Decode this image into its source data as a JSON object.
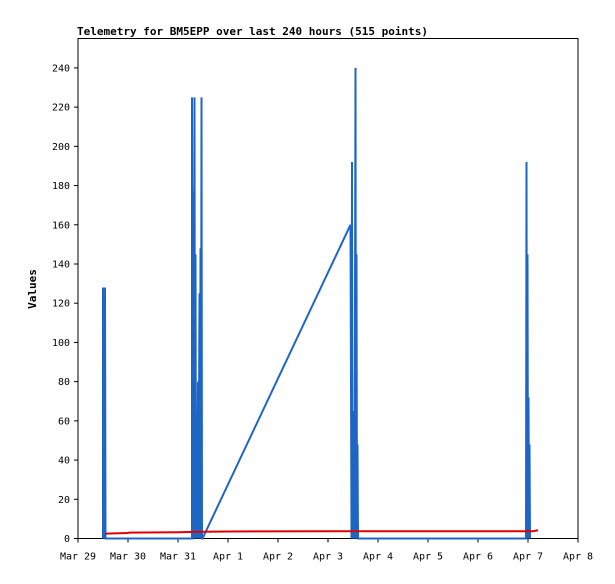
{
  "chart_data": {
    "type": "line",
    "title": "Telemetry for BM5EPP over last 240 hours (515 points)",
    "xlabel": "",
    "ylabel": "Values",
    "ylim": [
      0,
      255
    ],
    "xlim_days": [
      0,
      10
    ],
    "y_ticks": [
      0,
      20,
      40,
      60,
      80,
      100,
      120,
      140,
      160,
      180,
      200,
      220,
      240
    ],
    "x_ticks": [
      {
        "day": 0,
        "label": "Mar 29"
      },
      {
        "day": 1,
        "label": "Mar 30"
      },
      {
        "day": 2,
        "label": "Mar 31"
      },
      {
        "day": 3,
        "label": "Apr 1"
      },
      {
        "day": 4,
        "label": "Apr 2"
      },
      {
        "day": 5,
        "label": "Apr 3"
      },
      {
        "day": 6,
        "label": "Apr 4"
      },
      {
        "day": 7,
        "label": "Apr 5"
      },
      {
        "day": 8,
        "label": "Apr 6"
      },
      {
        "day": 9,
        "label": "Apr 7"
      },
      {
        "day": 10,
        "label": "Apr 8"
      }
    ],
    "grid": false,
    "colors": {
      "series1": "#1f66c4",
      "series2": "#e00000",
      "axis": "#000000"
    },
    "series": [
      {
        "points": [
          [
            0.5,
            0
          ],
          [
            0.5,
            128
          ],
          [
            0.52,
            0
          ],
          [
            0.52,
            112
          ],
          [
            0.53,
            0
          ],
          [
            0.54,
            128
          ],
          [
            0.55,
            0
          ],
          [
            2.28,
            0
          ],
          [
            2.28,
            225
          ],
          [
            2.3,
            0
          ],
          [
            2.31,
            177
          ],
          [
            2.32,
            0
          ],
          [
            2.33,
            225
          ],
          [
            2.34,
            0
          ],
          [
            2.35,
            145
          ],
          [
            2.36,
            0
          ],
          [
            2.37,
            60
          ],
          [
            2.38,
            0
          ],
          [
            2.4,
            80
          ],
          [
            2.41,
            0
          ],
          [
            2.43,
            125
          ],
          [
            2.44,
            0
          ],
          [
            2.45,
            148
          ],
          [
            2.46,
            0
          ],
          [
            2.47,
            225
          ],
          [
            2.48,
            0
          ],
          [
            2.49,
            0
          ],
          [
            5.45,
            160
          ],
          [
            5.47,
            0
          ],
          [
            5.48,
            192
          ],
          [
            5.49,
            0
          ],
          [
            5.5,
            65
          ],
          [
            5.51,
            0
          ],
          [
            5.52,
            17
          ],
          [
            5.53,
            0
          ],
          [
            5.55,
            240
          ],
          [
            5.56,
            0
          ],
          [
            5.57,
            145
          ],
          [
            5.58,
            0
          ],
          [
            5.59,
            48
          ],
          [
            5.6,
            0
          ],
          [
            5.61,
            0
          ],
          [
            8.96,
            0
          ],
          [
            8.97,
            192
          ],
          [
            8.98,
            0
          ],
          [
            8.99,
            145
          ],
          [
            9.0,
            0
          ],
          [
            9.01,
            72
          ],
          [
            9.02,
            0
          ],
          [
            9.03,
            48
          ],
          [
            9.04,
            0
          ]
        ]
      },
      {
        "points": [
          [
            0.55,
            2.5
          ],
          [
            1.0,
            2.8
          ],
          [
            1.02,
            3.0
          ],
          [
            2.0,
            3.2
          ],
          [
            2.3,
            3.4
          ],
          [
            3.0,
            3.6
          ],
          [
            5.0,
            3.7
          ],
          [
            9.1,
            3.7
          ],
          [
            9.2,
            4.2
          ]
        ]
      }
    ]
  }
}
